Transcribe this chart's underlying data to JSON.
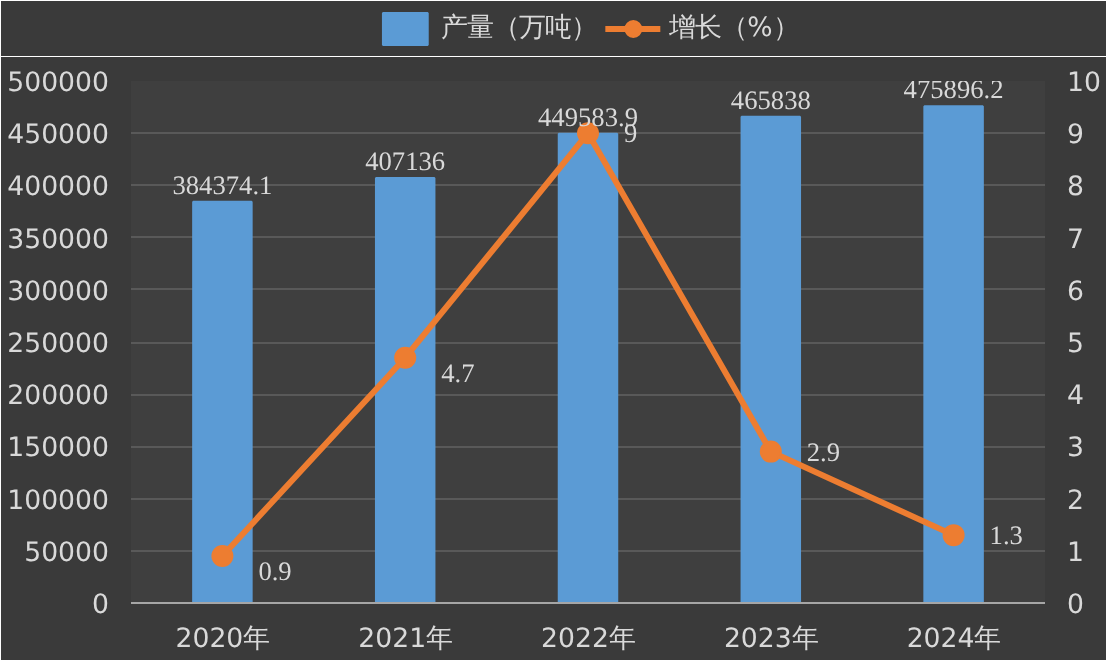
{
  "chart_data": {
    "type": "bar",
    "categories": [
      "2020年",
      "2021年",
      "2022年",
      "2023年",
      "2024年"
    ],
    "series": [
      {
        "name": "产量（万吨）",
        "color": "#5b9bd5",
        "values": [
          384374.1,
          407136,
          449583.9,
          465838,
          475896.2
        ]
      },
      {
        "name": "增长（%）",
        "type": "line",
        "axis": "y2",
        "color": "#ed7d31",
        "values": [
          0.9,
          4.7,
          9,
          2.9,
          1.3
        ]
      }
    ],
    "ylim": [
      0,
      500000
    ],
    "yticks": [
      0,
      50000,
      100000,
      150000,
      200000,
      250000,
      300000,
      350000,
      400000,
      450000,
      500000
    ],
    "y2lim": [
      0,
      10
    ],
    "y2ticks": [
      0,
      1,
      2,
      3,
      4,
      5,
      6,
      7,
      8,
      9,
      10
    ],
    "grid": "y",
    "legend": "top",
    "marker": "circle",
    "data_labels": true
  }
}
